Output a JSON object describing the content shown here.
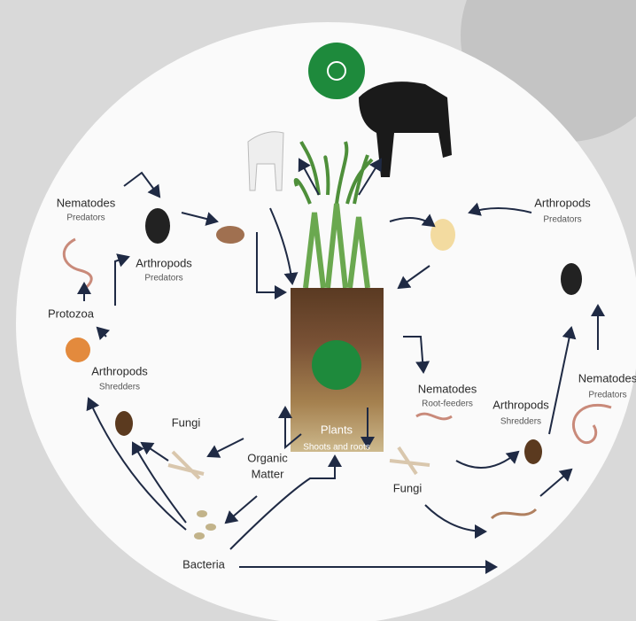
{
  "nodes": [
    {
      "label": "Nematodes",
      "sublabel": "Predators"
    },
    {
      "label": "Arthropods",
      "sublabel": "Predators"
    },
    {
      "label": "Protozoa"
    },
    {
      "label": "Arthropods",
      "sublabel": "Shredders"
    },
    {
      "label": "Fungi"
    },
    {
      "lines": [
        "Organic",
        "Matter"
      ]
    },
    {
      "label": "Plants",
      "sublabel": "Shoots and roots"
    },
    {
      "label": "Bacteria"
    },
    {
      "label": "Nematodes",
      "sublabel": "Root-feeders"
    },
    {
      "label": "Fungi"
    },
    {
      "label": "Arthropods",
      "sublabel": "Shredders"
    },
    {
      "label": "Nematodes",
      "sublabel": "Predators"
    },
    {
      "label": "Arthropods",
      "sublabel": "Predators"
    }
  ]
}
